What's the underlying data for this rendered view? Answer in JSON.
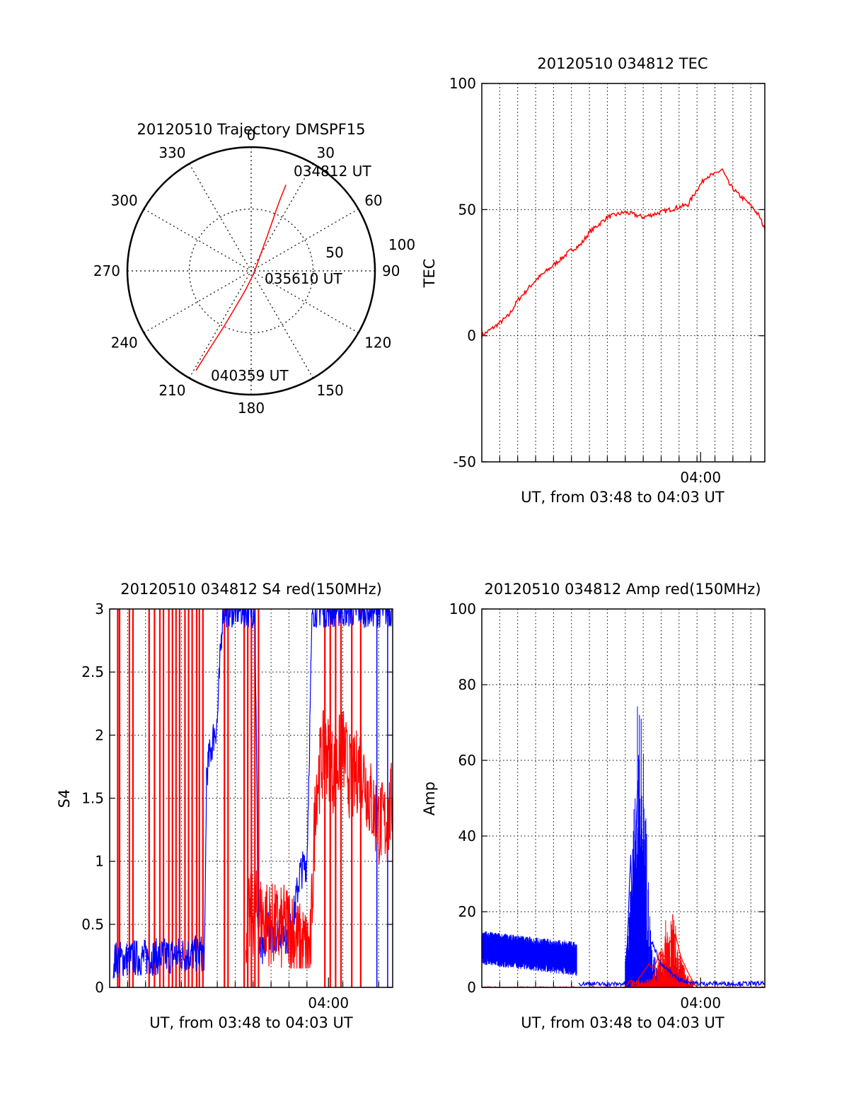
{
  "colors": {
    "red": "#ff0000",
    "blue": "#0000ff",
    "axis": "#000000",
    "grid": "#000000"
  },
  "chart_data": [
    {
      "id": "polar",
      "type": "scatter",
      "title": "20120510 Trajectory DMSPF15",
      "azimuth_labels": [
        "0",
        "30",
        "60",
        "90",
        "120",
        "150",
        "180",
        "210",
        "240",
        "270",
        "300",
        "330"
      ],
      "radius_labels": [
        "50",
        "100"
      ],
      "rlim": [
        0,
        100
      ],
      "grid": true,
      "trajectory": {
        "name": "DMSPF15",
        "points": [
          {
            "az": 22,
            "zen": 75
          },
          {
            "az": 22,
            "zen": 60
          },
          {
            "az": 23,
            "zen": 45
          },
          {
            "az": 25,
            "zen": 30
          },
          {
            "az": 30,
            "zen": 15
          },
          {
            "az": 90,
            "zen": 3
          },
          {
            "az": 195,
            "zen": 15
          },
          {
            "az": 203,
            "zen": 30
          },
          {
            "az": 206,
            "zen": 50
          },
          {
            "az": 208,
            "zen": 70
          },
          {
            "az": 209,
            "zen": 92
          }
        ]
      },
      "annotations": [
        "034812 UT",
        "035610 UT",
        "040359 UT"
      ]
    },
    {
      "id": "tec",
      "type": "line",
      "title": "20120510 034812 TEC",
      "xlabel": "UT, from 03:48 to 04:03 UT",
      "ylabel": "TEC",
      "xlim": [
        0,
        15.78
      ],
      "ylim": [
        -50,
        100
      ],
      "yticks": [
        "-50",
        "0",
        "50",
        "100"
      ],
      "xticks": [
        {
          "at": 12.2,
          "label": "04:00"
        }
      ],
      "grid": true,
      "series": [
        {
          "color": "red",
          "x": [
            0,
            0.8,
            1.5,
            2.0,
            2.5,
            3.0,
            3.5,
            4.0,
            4.5,
            5.0,
            5.5,
            6.0,
            6.5,
            7.0,
            7.5,
            8.0,
            8.5,
            9.0,
            9.5,
            10.0,
            10.5,
            11.0,
            11.5,
            12.0,
            12.5,
            13.0,
            13.4,
            13.8,
            14.3,
            14.8,
            15.2,
            15.5,
            15.78
          ],
          "y": [
            0,
            4,
            8,
            14,
            18,
            22,
            25,
            28,
            31,
            34,
            36,
            41,
            44,
            47,
            48,
            49,
            48,
            47,
            48,
            49,
            50,
            51,
            52,
            58,
            63,
            64,
            66,
            60,
            56,
            53,
            50,
            47,
            42
          ]
        }
      ]
    },
    {
      "id": "s4",
      "type": "line",
      "title": "20120510 034812 S4 red(150MHz)",
      "xlabel": "UT, from 03:48 to 04:03 UT",
      "ylabel": "S4",
      "xlim": [
        0,
        15.78
      ],
      "ylim": [
        0,
        3
      ],
      "yticks": [
        "0",
        "0.5",
        "1",
        "1.5",
        "2",
        "2.5",
        "3"
      ],
      "xticks": [
        {
          "at": 12.2,
          "label": "04:00"
        }
      ],
      "grid": true,
      "series": [
        {
          "color": "blue",
          "x": [
            0.2,
            5.3,
            5.4,
            5.8,
            6.0,
            6.3,
            6.6,
            7.3,
            8.1,
            8.3,
            8.6,
            8.8,
            9.0,
            9.5,
            10.0,
            10.3,
            10.6,
            11.0,
            11.3,
            11.7,
            12.0,
            12.5,
            13.0,
            14.0,
            15.0,
            15.78
          ],
          "y": [
            0.22,
            0.27,
            1.7,
            2.0,
            2.1,
            3.0,
            3.0,
            3.0,
            3.0,
            0.3,
            0.25,
            0.55,
            0.4,
            0.45,
            0.4,
            0.6,
            0.9,
            1.0,
            3.0,
            3.0,
            3.0,
            3.0,
            3.0,
            3.0,
            3.0,
            3.0
          ]
        },
        {
          "color": "red",
          "x": [
            7.6,
            8.1,
            8.6,
            9.0,
            9.5,
            10.0,
            10.5,
            11.0,
            11.2,
            11.5,
            12.0,
            12.5,
            13.0,
            13.5,
            14.0,
            14.5,
            15.0,
            15.5,
            15.78
          ],
          "y": [
            0.5,
            0.6,
            0.55,
            0.5,
            0.45,
            0.5,
            0.35,
            0.3,
            0.3,
            1.6,
            1.9,
            1.7,
            1.9,
            1.6,
            1.8,
            1.5,
            1.3,
            1.3,
            1.5
          ]
        }
      ],
      "red_spikes_x": [
        0.45,
        0.55,
        1.1,
        1.3,
        2.2,
        2.5,
        2.8,
        3.0,
        3.3,
        3.5,
        3.7,
        3.9,
        4.2,
        4.4,
        4.6,
        4.85,
        5.0,
        5.2,
        6.4,
        6.6,
        7.5,
        7.7,
        7.9,
        8.1,
        8.3,
        12.0,
        12.3,
        12.6,
        12.9,
        13.5,
        14.0
      ],
      "blue_spikes_x": [
        14.9,
        15.5
      ]
    },
    {
      "id": "amp",
      "type": "line",
      "title": "20120510 034812 Amp red(150MHz)",
      "xlabel": "UT, from 03:48 to 04:03 UT",
      "ylabel": "Amp",
      "xlim": [
        0,
        15.78
      ],
      "ylim": [
        0,
        100
      ],
      "yticks": [
        "0",
        "20",
        "40",
        "60",
        "80",
        "100"
      ],
      "xticks": [
        {
          "at": 12.2,
          "label": "04:00"
        }
      ],
      "grid": true,
      "series": [
        {
          "color": "blue",
          "x": [
            0,
            1,
            2,
            3,
            4,
            5,
            5.3,
            5.4,
            6,
            7,
            8,
            8.1,
            8.3,
            8.4,
            8.6,
            8.7,
            8.9,
            9.0,
            9.3,
            9.5,
            10,
            10.5,
            11,
            12,
            13,
            14,
            15,
            15.78
          ],
          "y": [
            10,
            10,
            9,
            9,
            8,
            7.5,
            7,
            1,
            1,
            0.8,
            1,
            10,
            35,
            20,
            40,
            55,
            30,
            15,
            10,
            12,
            6,
            4,
            2,
            1,
            1,
            1,
            1,
            1
          ]
        },
        {
          "color": "red",
          "x": [
            0,
            5.3,
            8.0,
            8.3,
            8.6,
            9.0,
            9.3,
            9.6,
            9.9,
            10.2,
            10.5,
            10.8,
            11.1,
            11.4,
            11.7,
            12.0,
            15.78
          ],
          "y": [
            0,
            0,
            0,
            2,
            1,
            4,
            6,
            5,
            9,
            8,
            12,
            14,
            8,
            5,
            2,
            0,
            0
          ]
        }
      ],
      "amp_blue_noise": {
        "x0": 0,
        "x1": 5.3,
        "amp_start": 10.5,
        "amp_end": 7.5,
        "spread": 4.5
      },
      "amp_blue_burst": {
        "peak_x": 8.8,
        "peak_y": 74
      },
      "amp_red_burst": {
        "peak_x": 10.5,
        "peak_y": 19
      }
    }
  ]
}
